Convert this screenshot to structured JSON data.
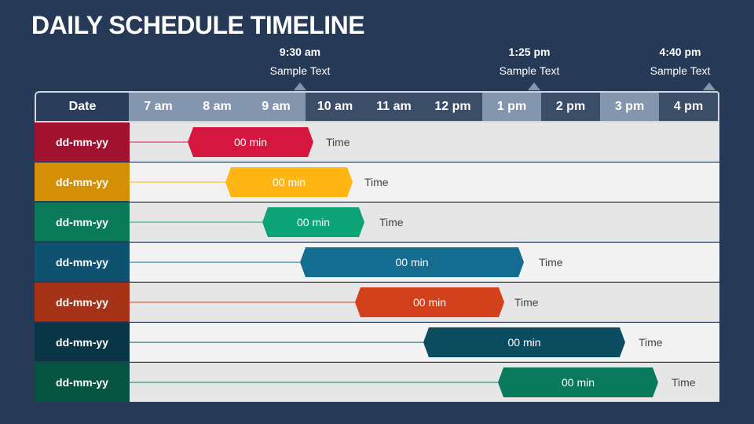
{
  "title": "DAILY SCHEDULE TIMELINE",
  "callouts": [
    {
      "time": "9:30 am",
      "text": "Sample Text"
    },
    {
      "time": "1:25 pm",
      "text": "Sample Text"
    },
    {
      "time": "4:40 pm",
      "text": "Sample Text"
    }
  ],
  "header": {
    "date_label": "Date",
    "hours": [
      "7 am",
      "8 am",
      "9 am",
      "10 am",
      "11 am",
      "12 pm",
      "1 pm",
      "2 pm",
      "3 pm",
      "4 pm"
    ]
  },
  "colors": {
    "background": "#263a57",
    "header_light": "#8496ad",
    "header_dark": "#3b4d67"
  },
  "rows": [
    {
      "date": "dd-mm-yy",
      "duration": "00 min",
      "time_label": "Time",
      "color": "#d5173f",
      "date_color": "#a0122f"
    },
    {
      "date": "dd-mm-yy",
      "duration": "00 min",
      "time_label": "Time",
      "color": "#ffb612",
      "date_color": "#d38f05"
    },
    {
      "date": "dd-mm-yy",
      "duration": "00 min",
      "time_label": "Time",
      "color": "#0ba377",
      "date_color": "#0a7a59"
    },
    {
      "date": "dd-mm-yy",
      "duration": "00 min",
      "time_label": "Time",
      "color": "#146d90",
      "date_color": "#0f5270"
    },
    {
      "date": "dd-mm-yy",
      "duration": "00 min",
      "time_label": "Time",
      "color": "#d2401c",
      "date_color": "#a53318"
    },
    {
      "date": "dd-mm-yy",
      "duration": "00 min",
      "time_label": "Time",
      "color": "#0b4c5f",
      "date_color": "#0a3544"
    },
    {
      "date": "dd-mm-yy",
      "duration": "00 min",
      "time_label": "Time",
      "color": "#0a7a5c",
      "date_color": "#075440"
    }
  ]
}
